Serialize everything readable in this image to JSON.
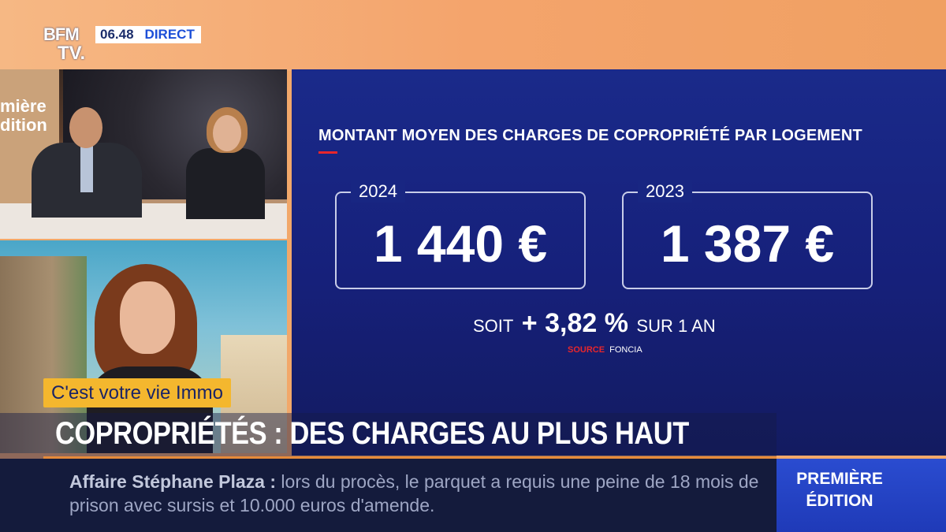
{
  "channel": {
    "logo_line1": "BFM",
    "logo_line2": "TV.",
    "time": "06.48",
    "live_label": "DIRECT"
  },
  "studio": {
    "wall_text_line1": "mière",
    "wall_text_line2": "dition"
  },
  "graphic": {
    "title": "MONTANT MOYEN DES CHARGES DE COPROPRIÉTÉ PAR LOGEMENT",
    "cards": [
      {
        "year": "2024",
        "value": "1 440 €"
      },
      {
        "year": "2023",
        "value": "1 387 €"
      }
    ],
    "change_prefix": "SOIT",
    "change_value": "+ 3,82 %",
    "change_suffix": "SUR 1 AN",
    "source_label": "SOURCE",
    "source_name": "FONCIA"
  },
  "segment_tag": "C'est votre vie Immo",
  "headline": "COPROPRIÉTÉS : DES CHARGES AU PLUS HAUT",
  "ticker": {
    "subject": "Affaire Stéphane Plaza :",
    "text": "lors du procès, le parquet a requis une peine de 18 mois de prison avec sursis et 10.000 euros d'amende."
  },
  "show": {
    "line1": "PREMIÈRE",
    "line2": "ÉDITION"
  },
  "colors": {
    "accent_red": "#e8262b",
    "graphic_blue": "#1a2a8a",
    "tag_yellow": "#f4b72e",
    "show_blue": "#2a4cd0"
  }
}
